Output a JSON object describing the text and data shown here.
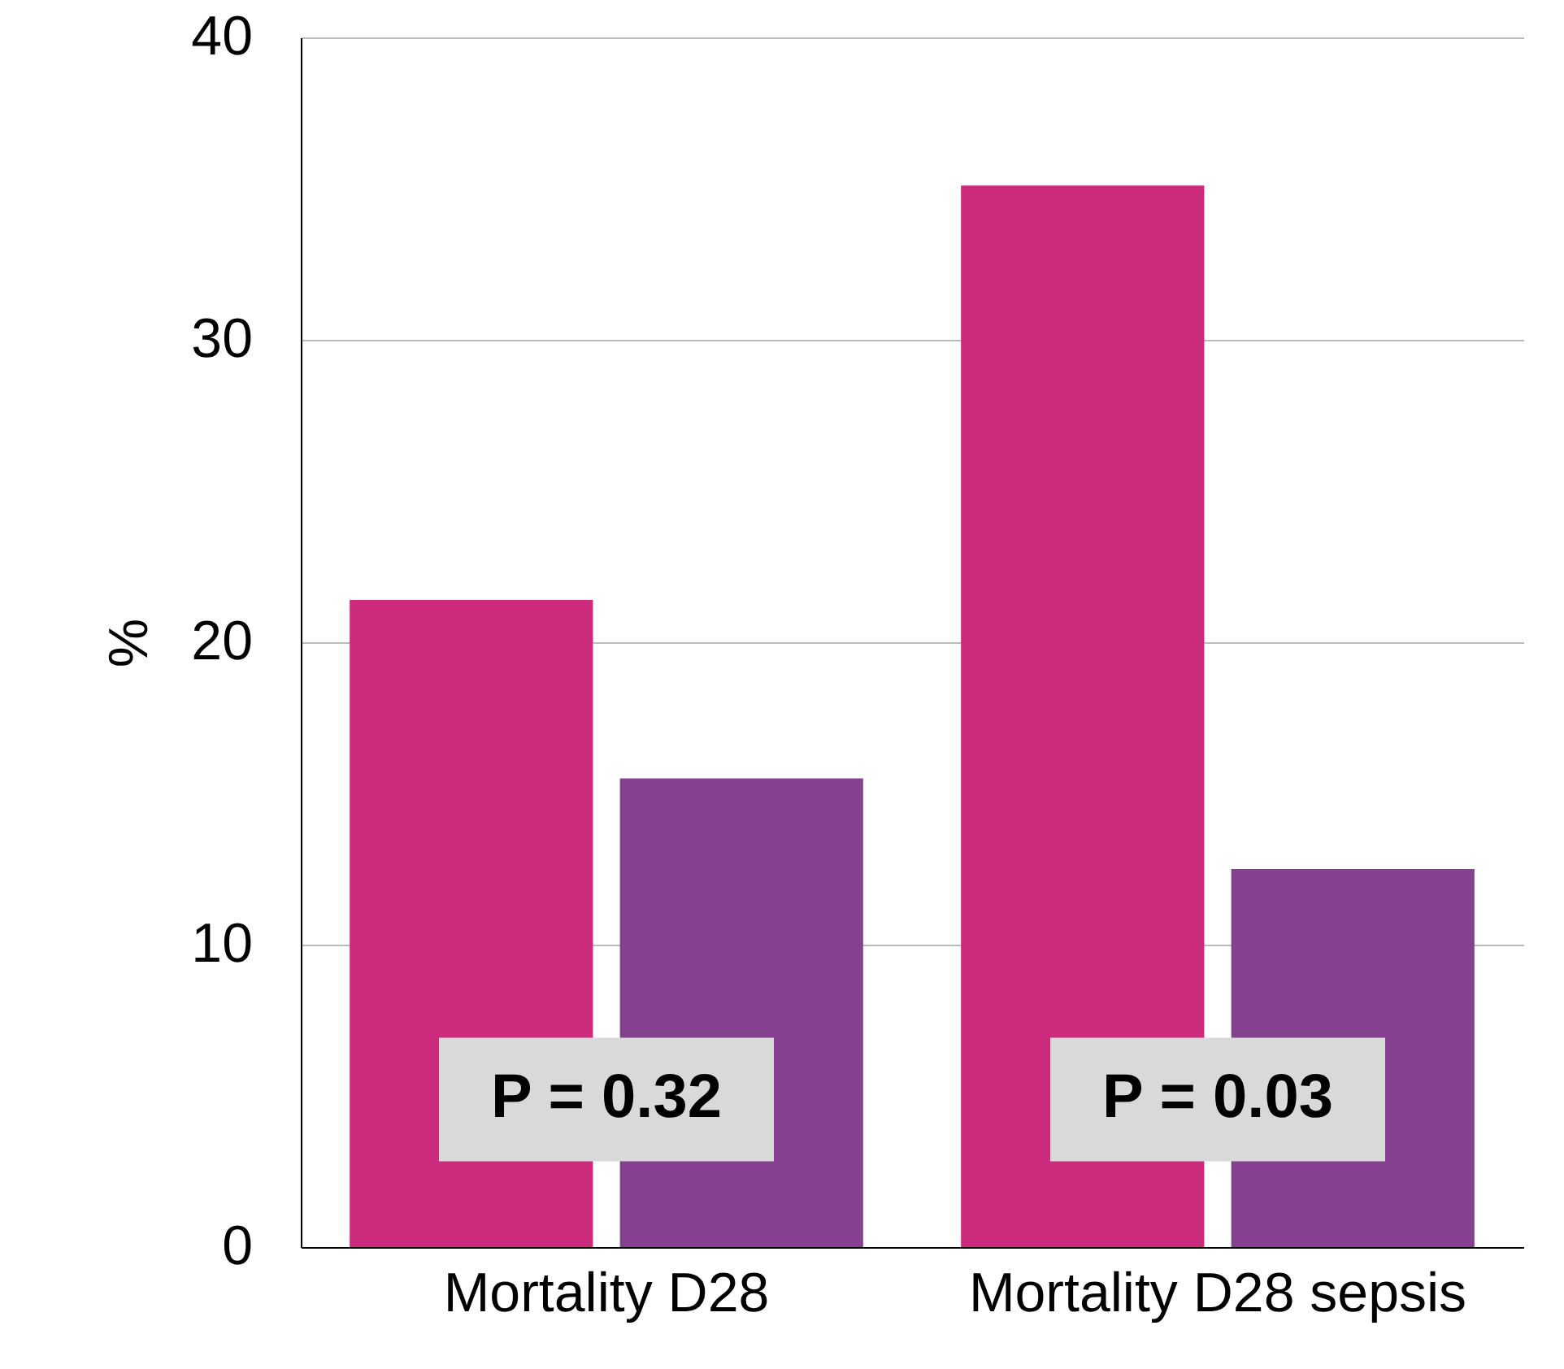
{
  "chart_data": {
    "type": "bar",
    "ylabel": "%",
    "categories": [
      "Mortality D28",
      "Mortality D28 sepsis"
    ],
    "series": [
      {
        "color": "#cc2a7a",
        "values": [
          21.4,
          35.1
        ]
      },
      {
        "color": "#85418f",
        "values": [
          15.5,
          12.5
        ]
      }
    ],
    "ylim": [
      0,
      40
    ],
    "yticks": [
      0,
      10,
      20,
      30,
      40
    ],
    "grid": "y",
    "annotations": [
      "P = 0.32",
      "P = 0.03"
    ]
  }
}
